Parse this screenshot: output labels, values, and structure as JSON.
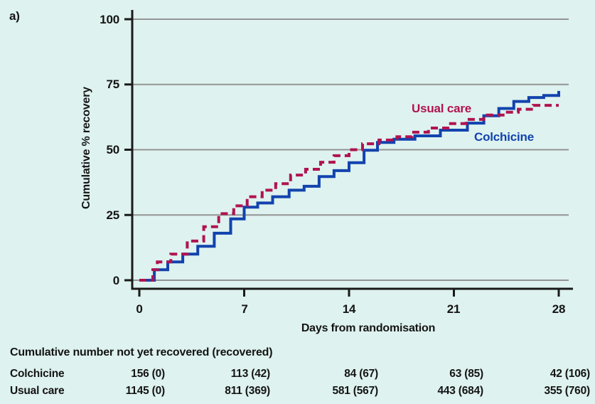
{
  "panel_label": "a)",
  "colors": {
    "background": "#def2ef",
    "colchicine_blue": "#1243ae",
    "usual_care_red": "#b01350",
    "gridline_gray": "#949494",
    "axis_black": "#1a1a1a"
  },
  "chart_data": {
    "type": "line",
    "subtype": "step",
    "title": "",
    "xlabel": "Days from randomisation",
    "ylabel": "Cumulative % recovery",
    "xlim": [
      0,
      28
    ],
    "ylim": [
      0,
      100
    ],
    "xticks": [
      0,
      7,
      14,
      21,
      28
    ],
    "yticks": [
      0,
      25,
      50,
      75,
      100
    ],
    "grid": "horizontal",
    "legend_position": "inline-annotations",
    "series": [
      {
        "name": "Colchicine",
        "style": "solid",
        "color": "#1243ae",
        "points": [
          [
            0,
            0
          ],
          [
            1,
            4
          ],
          [
            1.9,
            7
          ],
          [
            2.9,
            10
          ],
          [
            3.9,
            13
          ],
          [
            5,
            18
          ],
          [
            6.1,
            23.5
          ],
          [
            7,
            28
          ],
          [
            7.9,
            29.6
          ],
          [
            8.9,
            32
          ],
          [
            10,
            34.5
          ],
          [
            11,
            36
          ],
          [
            12,
            39.7
          ],
          [
            13,
            42
          ],
          [
            14,
            45
          ],
          [
            15,
            49.8
          ],
          [
            15.9,
            52.8
          ],
          [
            17,
            54
          ],
          [
            18.4,
            55.3
          ],
          [
            20.1,
            57.5
          ],
          [
            21.9,
            60.2
          ],
          [
            23,
            63
          ],
          [
            24,
            65.8
          ],
          [
            25,
            68.5
          ],
          [
            26,
            70
          ],
          [
            27,
            70.8
          ],
          [
            28,
            72.5
          ]
        ]
      },
      {
        "name": "Usual care",
        "style": "dashed",
        "color": "#b01350",
        "points": [
          [
            0,
            0
          ],
          [
            0.9,
            4
          ],
          [
            1.2,
            7
          ],
          [
            2.1,
            10
          ],
          [
            3.2,
            15
          ],
          [
            4.3,
            20.5
          ],
          [
            5.3,
            25.5
          ],
          [
            6.3,
            28.5
          ],
          [
            7.2,
            32
          ],
          [
            8.2,
            34.5
          ],
          [
            9.1,
            37
          ],
          [
            10.1,
            40.3
          ],
          [
            11.1,
            42.5
          ],
          [
            12.1,
            45.2
          ],
          [
            13,
            47.7
          ],
          [
            14,
            50
          ],
          [
            14.9,
            52.3
          ],
          [
            16,
            53.7
          ],
          [
            17.2,
            55
          ],
          [
            18.2,
            56.7
          ],
          [
            19.3,
            58.3
          ],
          [
            20.6,
            60
          ],
          [
            21.8,
            61.6
          ],
          [
            23,
            63.3
          ],
          [
            24.4,
            64.4
          ],
          [
            25.3,
            65.5
          ],
          [
            26.3,
            67
          ],
          [
            28,
            67
          ]
        ]
      }
    ]
  },
  "legend": {
    "usual_care": "Usual care",
    "colchicine": "Colchicine"
  },
  "axis_labels": {
    "y100": "100",
    "y75": "75",
    "y50": "50",
    "y25": "25",
    "y0": "0",
    "x0": "0",
    "x7": "7",
    "x14": "14",
    "x21": "21",
    "x28": "28"
  },
  "risk_table": {
    "title": "Cumulative number not yet recovered (recovered)",
    "rows": [
      {
        "label": "Colchicine",
        "values": [
          "156 (0)",
          "113 (42)",
          "84 (67)",
          "63 (85)",
          "42 (106)"
        ]
      },
      {
        "label": "Usual care",
        "values": [
          "1145 (0)",
          "811 (369)",
          "581 (567)",
          "443 (684)",
          "355 (760)"
        ]
      }
    ]
  }
}
